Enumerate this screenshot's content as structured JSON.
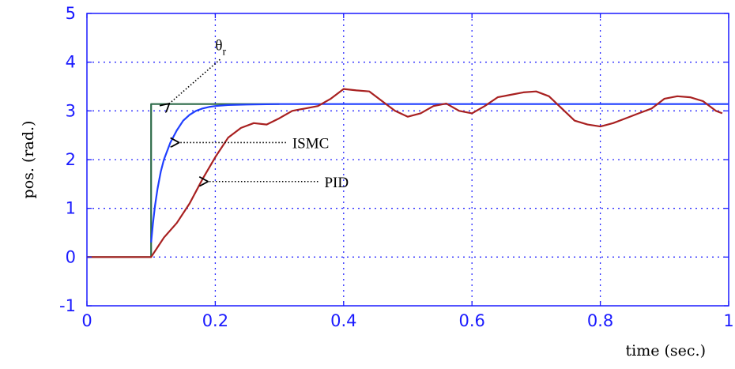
{
  "chart_data": {
    "type": "line",
    "title": "",
    "xlabel": "time (sec.)",
    "ylabel": "pos. (rad.)",
    "xlim": [
      0,
      1
    ],
    "ylim": [
      -1,
      5
    ],
    "xticks": [
      0,
      0.2,
      0.4,
      0.6,
      0.8,
      1
    ],
    "xtick_labels": [
      "0",
      "0.2",
      "0.4",
      "0.6",
      "0.8",
      "1"
    ],
    "yticks": [
      -1,
      0,
      1,
      2,
      3,
      4,
      5
    ],
    "ytick_labels": [
      "-1",
      "0",
      "1",
      "2",
      "3",
      "4",
      "5"
    ],
    "grid": true,
    "grid_style": "dotted",
    "series": [
      {
        "name": "θr",
        "color": "#2e6b4a",
        "x": [
          0,
          0.1,
          0.1,
          0.3
        ],
        "y": [
          0,
          0,
          3.14,
          3.14
        ]
      },
      {
        "name": "ISMC",
        "color": "#1f3fff",
        "x": [
          0.1,
          0.103,
          0.106,
          0.11,
          0.115,
          0.12,
          0.13,
          0.14,
          0.15,
          0.16,
          0.17,
          0.18,
          0.19,
          0.2,
          0.22,
          0.25,
          0.3,
          1.0
        ],
        "y": [
          0.3,
          0.7,
          1.05,
          1.4,
          1.75,
          2.0,
          2.35,
          2.6,
          2.8,
          2.92,
          3.0,
          3.05,
          3.08,
          3.1,
          3.12,
          3.13,
          3.14,
          3.14
        ]
      },
      {
        "name": "PID",
        "color": "#a82020",
        "x": [
          0,
          0.1,
          0.11,
          0.12,
          0.14,
          0.16,
          0.18,
          0.2,
          0.22,
          0.24,
          0.26,
          0.28,
          0.3,
          0.32,
          0.34,
          0.36,
          0.38,
          0.4,
          0.42,
          0.44,
          0.46,
          0.48,
          0.5,
          0.52,
          0.54,
          0.56,
          0.58,
          0.6,
          0.62,
          0.64,
          0.66,
          0.68,
          0.7,
          0.72,
          0.74,
          0.76,
          0.78,
          0.8,
          0.82,
          0.84,
          0.86,
          0.88,
          0.9,
          0.92,
          0.94,
          0.96,
          0.98,
          0.99
        ],
        "y": [
          0,
          0,
          0.2,
          0.4,
          0.7,
          1.1,
          1.6,
          2.05,
          2.45,
          2.65,
          2.75,
          2.72,
          2.85,
          3.0,
          3.05,
          3.1,
          3.25,
          3.45,
          3.42,
          3.4,
          3.2,
          3.0,
          2.88,
          2.95,
          3.1,
          3.15,
          3.0,
          2.95,
          3.1,
          3.28,
          3.33,
          3.38,
          3.4,
          3.3,
          3.05,
          2.8,
          2.72,
          2.68,
          2.75,
          2.85,
          2.95,
          3.05,
          3.25,
          3.3,
          3.28,
          3.2,
          3.0,
          2.95
        ]
      }
    ],
    "annotations": [
      {
        "text": "θr",
        "x": 0.2,
        "y": 4.25,
        "arrow_to_x": 0.125,
        "arrow_to_y": 3.14
      },
      {
        "text": "ISMC",
        "x": 0.32,
        "y": 2.25,
        "arrow_to_x": 0.14,
        "arrow_to_y": 2.35
      },
      {
        "text": "PID",
        "x": 0.37,
        "y": 1.5,
        "arrow_to_x": 0.185,
        "arrow_to_y": 1.55
      }
    ]
  }
}
